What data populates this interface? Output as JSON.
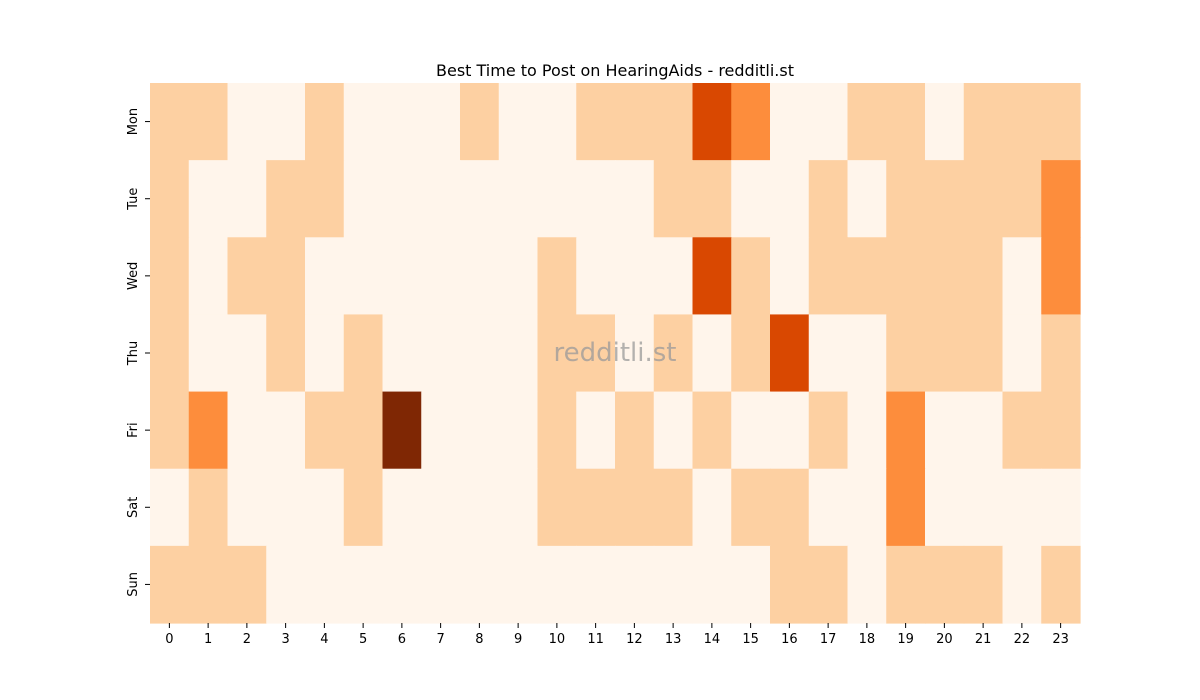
{
  "chart_data": {
    "type": "heatmap",
    "title": "Best Time to Post on HearingAids - redditli.st",
    "watermark": "redditli.st",
    "x_labels": [
      "0",
      "1",
      "2",
      "3",
      "4",
      "5",
      "6",
      "7",
      "8",
      "9",
      "10",
      "11",
      "12",
      "13",
      "14",
      "15",
      "16",
      "17",
      "18",
      "19",
      "20",
      "21",
      "22",
      "23"
    ],
    "y_labels": [
      "Mon",
      "Tue",
      "Wed",
      "Thu",
      "Fri",
      "Sat",
      "Sun"
    ],
    "colormap": "Oranges",
    "color_levels": [
      "#fff5eb",
      "#fdd0a2",
      "#fd8d3c",
      "#d94801",
      "#7f2704"
    ],
    "values": [
      [
        1,
        1,
        0,
        0,
        1,
        0,
        0,
        0,
        1,
        0,
        0,
        1,
        1,
        1,
        3,
        2,
        0,
        0,
        1,
        1,
        0,
        1,
        1,
        1
      ],
      [
        1,
        0,
        0,
        1,
        1,
        0,
        0,
        0,
        0,
        0,
        0,
        0,
        0,
        1,
        1,
        0,
        0,
        1,
        0,
        1,
        1,
        1,
        1,
        2
      ],
      [
        1,
        0,
        1,
        1,
        0,
        0,
        0,
        0,
        0,
        0,
        1,
        0,
        0,
        0,
        3,
        1,
        0,
        1,
        1,
        1,
        1,
        1,
        0,
        2
      ],
      [
        1,
        0,
        0,
        1,
        0,
        1,
        0,
        0,
        0,
        0,
        1,
        1,
        0,
        1,
        0,
        1,
        3,
        0,
        0,
        1,
        1,
        1,
        0,
        1
      ],
      [
        1,
        2,
        0,
        0,
        1,
        1,
        4,
        0,
        0,
        0,
        1,
        0,
        1,
        0,
        1,
        0,
        0,
        1,
        0,
        2,
        0,
        0,
        1,
        1
      ],
      [
        0,
        1,
        0,
        0,
        0,
        1,
        0,
        0,
        0,
        0,
        1,
        1,
        1,
        1,
        0,
        1,
        1,
        0,
        0,
        2,
        0,
        0,
        0,
        0
      ],
      [
        1,
        1,
        1,
        0,
        0,
        0,
        0,
        0,
        0,
        0,
        0,
        0,
        0,
        0,
        0,
        0,
        1,
        1,
        0,
        1,
        1,
        1,
        0,
        1
      ]
    ]
  }
}
